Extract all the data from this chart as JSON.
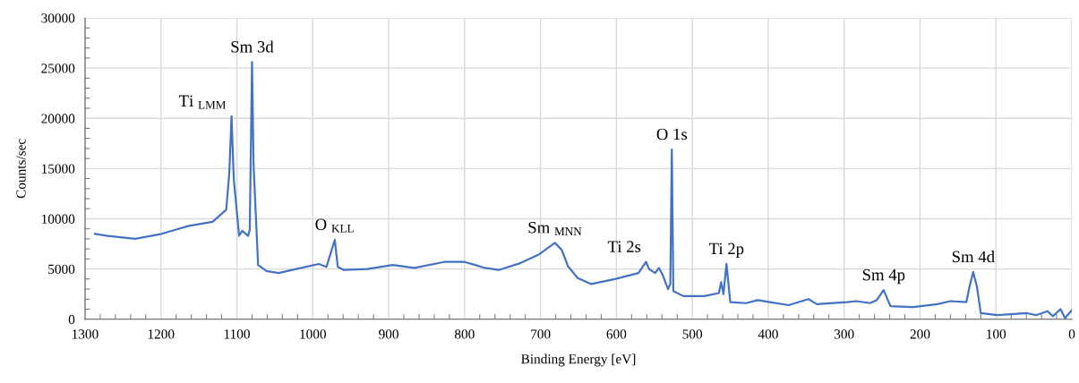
{
  "chart_data": {
    "type": "line",
    "xlabel": "Binding Energy [eV]",
    "ylabel": "Counts/sec",
    "xlim": [
      1300,
      0
    ],
    "xticks": [
      1300,
      1200,
      1100,
      1000,
      900,
      800,
      700,
      600,
      500,
      400,
      300,
      200,
      100,
      0
    ],
    "ylim": [
      0,
      30000
    ],
    "yticks": [
      0,
      5000,
      10000,
      15000,
      20000,
      25000,
      30000
    ],
    "grid": true,
    "marker": "none",
    "line_style": "solid",
    "series": [
      {
        "color": "#4472c4",
        "x": [
          1287,
          1270,
          1234,
          1199,
          1163,
          1132,
          1120,
          1114,
          1110,
          1107,
          1104,
          1097,
          1093,
          1085,
          1083,
          1080,
          1078,
          1072,
          1061,
          1045,
          1022,
          992,
          982,
          971,
          967,
          959,
          928,
          895,
          866,
          827,
          800,
          786,
          773,
          755,
          726,
          703,
          681,
          672,
          664,
          651,
          633,
          602,
          571,
          561,
          557,
          549,
          544,
          539,
          532,
          529,
          527,
          525,
          512,
          484,
          465,
          462,
          459,
          455,
          450,
          429,
          414,
          398,
          373,
          347,
          336,
          296,
          284,
          266,
          257,
          248,
          239,
          209,
          177,
          160,
          139,
          135,
          130,
          125,
          120,
          98,
          59,
          47,
          32,
          25,
          15,
          9,
          0
        ],
        "values": [
          8500,
          8300,
          8000,
          8500,
          9300,
          9700,
          10500,
          10900,
          14500,
          20200,
          13900,
          8300,
          8800,
          8300,
          8900,
          25600,
          15400,
          5400,
          4800,
          4600,
          5000,
          5500,
          5200,
          7900,
          5200,
          4900,
          5000,
          5400,
          5100,
          5700,
          5700,
          5400,
          5100,
          4900,
          5600,
          6400,
          7600,
          6900,
          5300,
          4100,
          3500,
          4000,
          4600,
          5700,
          5000,
          4600,
          5100,
          4400,
          3000,
          3500,
          16900,
          2800,
          2300,
          2300,
          2600,
          3700,
          2500,
          5500,
          1700,
          1600,
          1900,
          1700,
          1400,
          2000,
          1500,
          1700,
          1800,
          1600,
          1900,
          2900,
          1300,
          1200,
          1500,
          1800,
          1700,
          3200,
          4700,
          3200,
          600,
          400,
          600,
          400,
          800,
          300,
          1000,
          100,
          900
        ]
      }
    ],
    "annotations": [
      {
        "text": "Ti $_{LMM}$",
        "x": 1107,
        "y": 20200
      },
      {
        "text": "Sm 3d",
        "x": 1080,
        "y": 25600
      },
      {
        "text": "O $_{KLL}$",
        "x": 971,
        "y": 7900
      },
      {
        "text": "Sm $_{MNN}$",
        "x": 681,
        "y": 7600
      },
      {
        "text": "Ti 2s",
        "x": 561,
        "y": 5700
      },
      {
        "text": "O 1s",
        "x": 527,
        "y": 16900
      },
      {
        "text": "Ti 2p",
        "x": 455,
        "y": 5500
      },
      {
        "text": "Sm 4p",
        "x": 248,
        "y": 2900
      },
      {
        "text": "Sm 4d",
        "x": 130,
        "y": 4700
      }
    ]
  }
}
